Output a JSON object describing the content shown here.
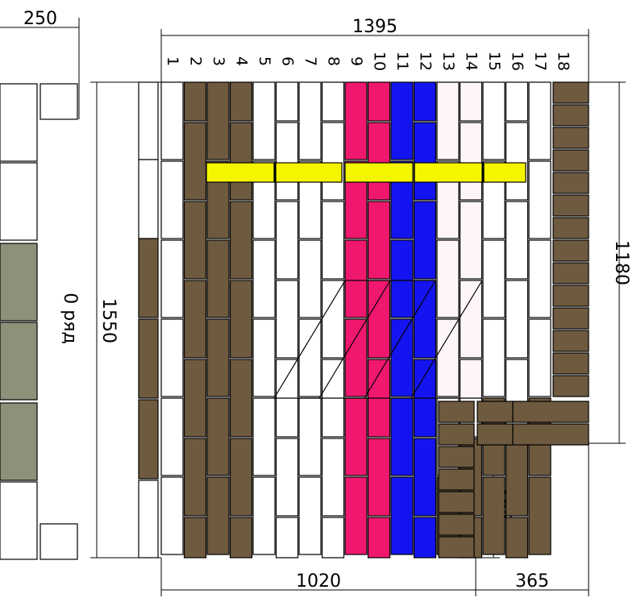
{
  "dimensions": {
    "left_width": "250",
    "top_width": "1395",
    "height": "1550",
    "right_height": "1180",
    "inner_height": "365",
    "bottom_width": "1020",
    "bottom_right_width": "365"
  },
  "row_label": "0 ряд",
  "column_numbers": [
    "1",
    "2",
    "3",
    "4",
    "5",
    "6",
    "7",
    "8",
    "9",
    "10",
    "11",
    "12",
    "13",
    "14",
    "15",
    "16",
    "17",
    "18"
  ],
  "colors": {
    "line": "#000000",
    "brown": "#6e5a3f",
    "yellow": "#f5f500",
    "pink": "#f0186e",
    "blue": "#1414f0",
    "light_pink": "#fdf5f8",
    "olive": "#8c917a",
    "white": "#ffffff"
  }
}
